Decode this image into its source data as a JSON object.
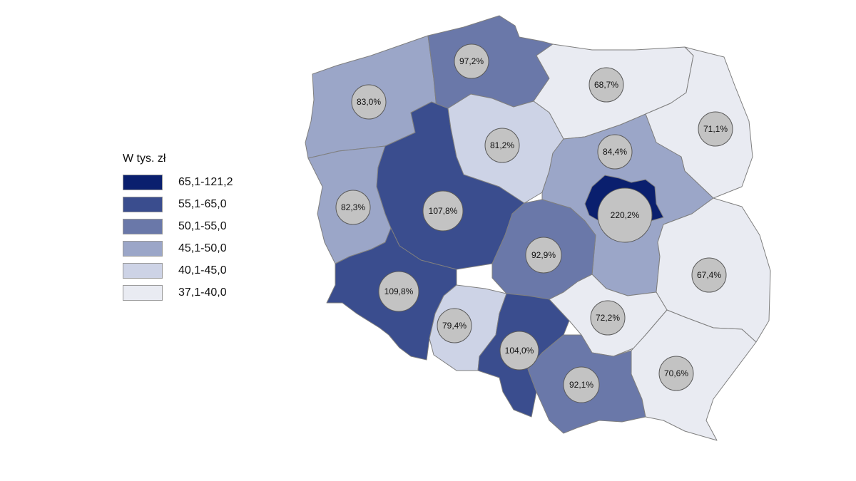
{
  "legend": {
    "title": "W tys. zł",
    "classes": [
      {
        "label": "65,1-121,2",
        "color": "#0a1f6e"
      },
      {
        "label": "55,1-65,0",
        "color": "#3a4d8e"
      },
      {
        "label": "50,1-55,0",
        "color": "#6a78a9"
      },
      {
        "label": "45,1-50,0",
        "color": "#9ba6c8"
      },
      {
        "label": "40,1-45,0",
        "color": "#cdd3e6"
      },
      {
        "label": "37,1-40,0",
        "color": "#e9ebf2"
      }
    ]
  },
  "regions": [
    {
      "id": "zachodniopomorskie",
      "value": "83,0%",
      "class": 3
    },
    {
      "id": "pomorskie",
      "value": "97,2%",
      "class": 2
    },
    {
      "id": "warminsko-mazurskie",
      "value": "68,7%",
      "class": 5
    },
    {
      "id": "podlaskie",
      "value": "71,1%",
      "class": 5
    },
    {
      "id": "lubuskie",
      "value": "82,3%",
      "class": 3
    },
    {
      "id": "wielkopolskie",
      "value": "107,8%",
      "class": 1
    },
    {
      "id": "kujawsko-pomorskie",
      "value": "81,2%",
      "class": 4
    },
    {
      "id": "mazowieckie",
      "value": "84,4%",
      "class": 3
    },
    {
      "id": "warszawski-stoleczny",
      "value": "220,2%",
      "class": 0
    },
    {
      "id": "lodzkie",
      "value": "92,9%",
      "class": 2
    },
    {
      "id": "lubelskie",
      "value": "67,4%",
      "class": 5
    },
    {
      "id": "dolnoslaskie",
      "value": "109,8%",
      "class": 1
    },
    {
      "id": "opolskie",
      "value": "79,4%",
      "class": 4
    },
    {
      "id": "slaskie",
      "value": "104,0%",
      "class": 1
    },
    {
      "id": "swietokrzyskie",
      "value": "72,2%",
      "class": 5
    },
    {
      "id": "malopolskie",
      "value": "92,1%",
      "class": 2
    },
    {
      "id": "podkarpackie",
      "value": "70,6%",
      "class": 5
    }
  ]
}
